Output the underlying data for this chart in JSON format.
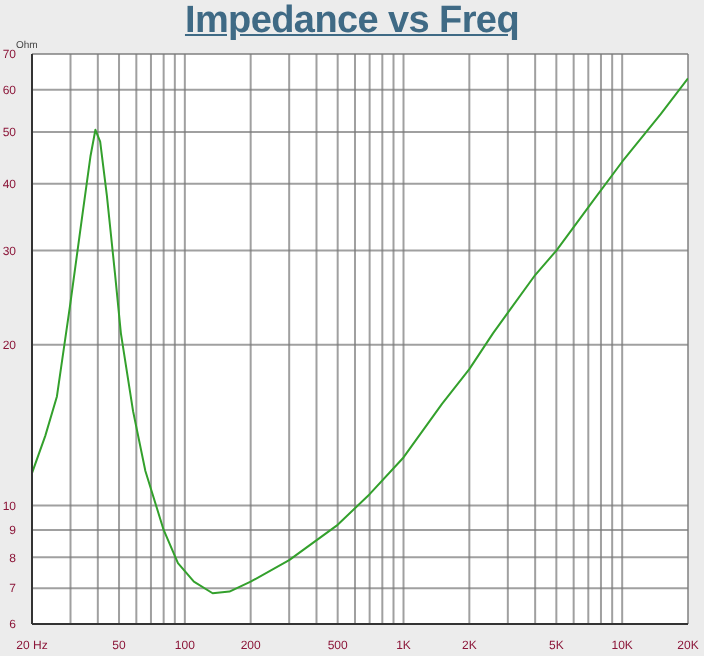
{
  "chart_data": {
    "type": "line",
    "title": "Impedance vs Freq",
    "ylabel": "Ohm",
    "log": "xy",
    "grid": true,
    "marker": "none",
    "line_style": "solid",
    "x": [
      20,
      23,
      26,
      30,
      34,
      37,
      39,
      41,
      44,
      48,
      51,
      58,
      66,
      80,
      93,
      110,
      134,
      160,
      200,
      300,
      500,
      700,
      1000,
      1500,
      2000,
      2565,
      4000,
      5000,
      7300,
      10000,
      15000,
      20000
    ],
    "series": [
      {
        "color": "#33a02c",
        "values": [
          11.5,
          13.5,
          16,
          24,
          35,
          45,
          50.5,
          48,
          38,
          27,
          21,
          15,
          11.6,
          9,
          7.8,
          7.2,
          6.85,
          6.9,
          7.2,
          7.9,
          9.2,
          10.5,
          12.3,
          15.5,
          18,
          21,
          27,
          30,
          37,
          44,
          54,
          63
        ]
      }
    ],
    "xlim": [
      20,
      20000
    ],
    "xticks": [
      {
        "value": 20,
        "label": "20 Hz"
      },
      {
        "value": 30,
        "label": null
      },
      {
        "value": 40,
        "label": null
      },
      50,
      {
        "value": 60,
        "label": null
      },
      {
        "value": 70,
        "label": null
      },
      {
        "value": 80,
        "label": null
      },
      {
        "value": 90,
        "label": null
      },
      100,
      200,
      {
        "value": 300,
        "label": null
      },
      {
        "value": 400,
        "label": null
      },
      500,
      {
        "value": 600,
        "label": null
      },
      {
        "value": 700,
        "label": null
      },
      {
        "value": 800,
        "label": null
      },
      {
        "value": 900,
        "label": null
      },
      {
        "value": 1000,
        "label": "1K"
      },
      {
        "value": 2000,
        "label": "2K"
      },
      {
        "value": 3000,
        "label": null
      },
      {
        "value": 4000,
        "label": null
      },
      {
        "value": 5000,
        "label": "5K"
      },
      {
        "value": 6000,
        "label": null
      },
      {
        "value": 7000,
        "label": null
      },
      {
        "value": 8000,
        "label": null
      },
      {
        "value": 9000,
        "label": null
      },
      {
        "value": 10000,
        "label": "10K"
      },
      {
        "value": 20000,
        "label": "20K"
      }
    ],
    "ylim": [
      6,
      70
    ],
    "yticks": [
      6,
      7,
      8,
      9,
      10,
      20,
      30,
      40,
      50,
      60,
      70
    ]
  }
}
